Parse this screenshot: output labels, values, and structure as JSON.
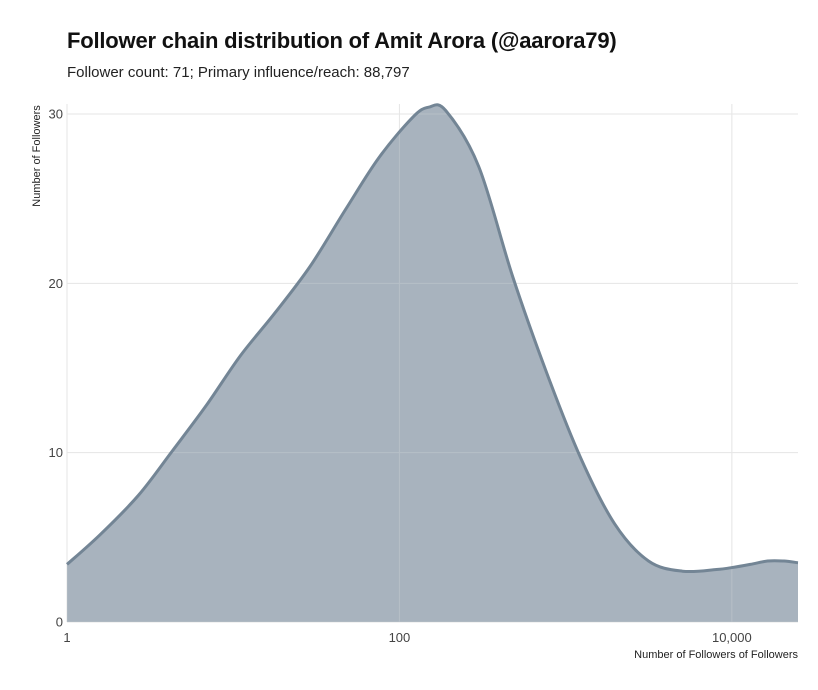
{
  "chart_data": {
    "type": "area",
    "title": "Follower chain distribution of Amit Arora (@aarora79)",
    "subtitle": "Follower count: 71; Primary influence/reach: 88,797",
    "xlabel": "Number of Followers of Followers",
    "ylabel": "Number of Followers",
    "x_scale": "log10",
    "xlim": [
      1,
      25000
    ],
    "ylim": [
      0,
      30
    ],
    "x_ticks": [
      {
        "value": 1,
        "label": "1"
      },
      {
        "value": 100,
        "label": "100"
      },
      {
        "value": 10000,
        "label": "10,000"
      }
    ],
    "y_ticks": [
      {
        "value": 0,
        "label": "0"
      },
      {
        "value": 10,
        "label": "10"
      },
      {
        "value": 20,
        "label": "20"
      },
      {
        "value": 30,
        "label": "30"
      }
    ],
    "grid": true,
    "fill_color": "#a3afba",
    "line_color": "#738595",
    "series": [
      {
        "x": [
          1,
          1.6,
          2.7,
          4.3,
          6.9,
          11,
          18,
          29,
          47,
          75,
          120,
          150,
          190,
          300,
          480,
          770,
          1230,
          1970,
          3150,
          5050,
          8070,
          9800,
          12900,
          16400,
          20600,
          25000
        ],
        "y": [
          3.4,
          5.2,
          7.5,
          10.1,
          12.8,
          15.7,
          18.3,
          21.0,
          24.3,
          27.4,
          29.8,
          30.4,
          30.2,
          26.9,
          20.4,
          14.7,
          9.7,
          5.8,
          3.6,
          3.0,
          3.1,
          3.2,
          3.4,
          3.6,
          3.6,
          3.5
        ]
      }
    ]
  }
}
